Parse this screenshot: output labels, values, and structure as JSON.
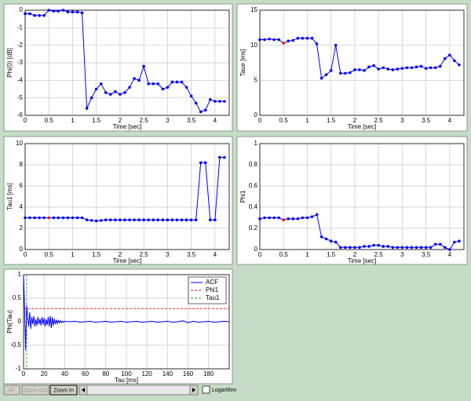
{
  "chart_data": [
    {
      "type": "line",
      "xlabel": "Time [sec]",
      "ylabel": "Phi(0) [dB]",
      "markers": true,
      "grid": true,
      "x": [
        0,
        0.1,
        0.2,
        0.3,
        0.4,
        0.5,
        0.6,
        0.7,
        0.8,
        0.9,
        1,
        1.1,
        1.2,
        1.3,
        1.4,
        1.5,
        1.6,
        1.7,
        1.8,
        1.9,
        2,
        2.1,
        2.2,
        2.3,
        2.4,
        2.5,
        2.6,
        2.7,
        2.8,
        2.9,
        3,
        3.1,
        3.2,
        3.3,
        3.4,
        3.5,
        3.6,
        3.7,
        3.8,
        3.9,
        4,
        4.1,
        4.2
      ],
      "series": [
        {
          "color": "#0000ff",
          "values": [
            -0.2,
            -0.2,
            -0.3,
            -0.3,
            -0.3,
            0,
            -0.05,
            -0.05,
            0,
            -0.1,
            -0.1,
            -0.1,
            -0.15,
            -5.6,
            -5.0,
            -4.5,
            -4.2,
            -4.7,
            -4.8,
            -4.65,
            -4.8,
            -4.7,
            -4.4,
            -3.9,
            -4.0,
            -3.2,
            -4.2,
            -4.2,
            -4.2,
            -4.5,
            -4.4,
            -4.1,
            -4.1,
            -4.1,
            -4.4,
            -4.9,
            -5.3,
            -5.8,
            -5.7,
            -5.1,
            -5.2,
            -5.2,
            -5.2
          ]
        }
      ],
      "xlim": [
        0,
        4.3
      ],
      "xticks": [
        0,
        0.5,
        1,
        1.5,
        2,
        2.5,
        3,
        3.5,
        4
      ],
      "ylim": [
        -6,
        0
      ],
      "yticks": [
        -6,
        -5,
        -4,
        -3,
        -2,
        -1,
        0
      ]
    },
    {
      "type": "line",
      "xlabel": "Time [sec]",
      "ylabel": "Taue [ms]",
      "markers": true,
      "grid": true,
      "highlight": {
        "x": 0.5,
        "color": "#ff0000"
      },
      "x": [
        0,
        0.1,
        0.2,
        0.3,
        0.4,
        0.5,
        0.6,
        0.7,
        0.8,
        0.9,
        1,
        1.1,
        1.2,
        1.3,
        1.4,
        1.5,
        1.6,
        1.7,
        1.8,
        1.9,
        2,
        2.1,
        2.2,
        2.3,
        2.4,
        2.5,
        2.6,
        2.7,
        2.8,
        2.9,
        3,
        3.1,
        3.2,
        3.3,
        3.4,
        3.5,
        3.6,
        3.7,
        3.8,
        3.9,
        4,
        4.1,
        4.2
      ],
      "series": [
        {
          "color": "#0000ff",
          "values": [
            10.8,
            10.8,
            10.9,
            10.8,
            10.8,
            10.3,
            10.6,
            10.7,
            11,
            11,
            11,
            11,
            10.2,
            5.3,
            5.8,
            6.4,
            10,
            6,
            6,
            6.1,
            6.5,
            6.5,
            6.4,
            6.9,
            7.1,
            6.6,
            6.8,
            6.6,
            6.5,
            6.6,
            6.7,
            6.8,
            6.8,
            6.9,
            7,
            6.7,
            6.8,
            6.8,
            7,
            8.1,
            8.6,
            7.8,
            7.2
          ]
        }
      ],
      "xlim": [
        0,
        4.3
      ],
      "xticks": [
        0,
        0.5,
        1,
        1.5,
        2,
        2.5,
        3,
        3.5,
        4
      ],
      "ylim": [
        0,
        15
      ],
      "yticks": [
        0,
        5,
        10,
        15
      ]
    },
    {
      "type": "line",
      "xlabel": "Time [sec]",
      "ylabel": "Tau1 [ms]",
      "markers": true,
      "grid": true,
      "highlight": {
        "x": 0.5,
        "color": "#ff0000"
      },
      "x": [
        0,
        0.1,
        0.2,
        0.3,
        0.4,
        0.5,
        0.6,
        0.7,
        0.8,
        0.9,
        1,
        1.1,
        1.2,
        1.3,
        1.4,
        1.5,
        1.6,
        1.7,
        1.8,
        1.9,
        2,
        2.1,
        2.2,
        2.3,
        2.4,
        2.5,
        2.6,
        2.7,
        2.8,
        2.9,
        3,
        3.1,
        3.2,
        3.3,
        3.4,
        3.5,
        3.6,
        3.7,
        3.8,
        3.9,
        4,
        4.1,
        4.2
      ],
      "series": [
        {
          "color": "#0000ff",
          "values": [
            3,
            3,
            3,
            3,
            3,
            3,
            3,
            3,
            3,
            3,
            3,
            3,
            3,
            2.8,
            2.75,
            2.7,
            2.75,
            2.8,
            2.8,
            2.8,
            2.8,
            2.8,
            2.8,
            2.8,
            2.8,
            2.8,
            2.8,
            2.8,
            2.8,
            2.8,
            2.8,
            2.8,
            2.8,
            2.8,
            2.8,
            2.8,
            2.8,
            8.2,
            8.2,
            2.8,
            2.8,
            8.7,
            8.7
          ]
        }
      ],
      "xlim": [
        0,
        4.3
      ],
      "xticks": [
        0,
        0.5,
        1,
        1.5,
        2,
        2.5,
        3,
        3.5,
        4
      ],
      "ylim": [
        0,
        10
      ],
      "yticks": [
        0,
        2,
        4,
        6,
        8,
        10
      ]
    },
    {
      "type": "line",
      "xlabel": "Time [sec]",
      "ylabel": "Phi1",
      "markers": true,
      "grid": true,
      "highlight": {
        "x": 0.5,
        "color": "#ff0000"
      },
      "x": [
        0,
        0.1,
        0.2,
        0.3,
        0.4,
        0.5,
        0.6,
        0.7,
        0.8,
        0.9,
        1,
        1.1,
        1.2,
        1.3,
        1.4,
        1.5,
        1.6,
        1.7,
        1.8,
        1.9,
        2,
        2.1,
        2.2,
        2.3,
        2.4,
        2.5,
        2.6,
        2.7,
        2.8,
        2.9,
        3,
        3.1,
        3.2,
        3.3,
        3.4,
        3.5,
        3.6,
        3.7,
        3.8,
        3.9,
        4,
        4.1,
        4.2
      ],
      "series": [
        {
          "color": "#0000ff",
          "values": [
            0.29,
            0.3,
            0.3,
            0.3,
            0.3,
            0.28,
            0.29,
            0.29,
            0.29,
            0.3,
            0.3,
            0.31,
            0.33,
            0.12,
            0.1,
            0.08,
            0.07,
            0.02,
            0.02,
            0.02,
            0.02,
            0.02,
            0.03,
            0.03,
            0.04,
            0.04,
            0.03,
            0.03,
            0.02,
            0.02,
            0.02,
            0.02,
            0.02,
            0.02,
            0.02,
            0.02,
            0.02,
            0.05,
            0.05,
            0.02,
            0,
            0.07,
            0.08
          ]
        }
      ],
      "xlim": [
        0,
        4.3
      ],
      "xticks": [
        0,
        0.5,
        1,
        1.5,
        2,
        2.5,
        3,
        3.5,
        4
      ],
      "ylim": [
        0,
        1
      ],
      "yticks": [
        0,
        0.2,
        0.4,
        0.6,
        0.8,
        1
      ]
    },
    {
      "type": "line",
      "xlabel": "Tau [ms]",
      "ylabel": "Phi(Tau)",
      "markers": false,
      "grid": true,
      "legend": "upper right",
      "x": [
        0,
        1,
        2,
        3,
        4,
        5,
        6,
        7,
        8,
        9,
        10,
        11,
        12,
        13,
        14,
        15,
        16,
        17,
        18,
        19,
        20,
        21,
        22,
        23,
        24,
        25,
        26,
        27,
        28,
        29,
        30,
        31,
        32,
        33,
        34,
        35,
        36,
        37,
        38,
        39,
        40,
        45,
        50,
        55,
        60,
        65,
        70,
        75,
        80,
        85,
        90,
        95,
        100,
        105,
        110,
        115,
        120,
        125,
        130,
        135,
        140,
        145,
        150,
        155,
        160,
        165,
        170,
        175,
        180,
        185,
        190,
        195,
        200
      ],
      "series": [
        {
          "name": "ACF",
          "color": "#0000ff",
          "values": [
            1,
            0.3,
            -0.6,
            0.35,
            0.1,
            -0.1,
            0.2,
            -0.15,
            0.1,
            -0.05,
            0.12,
            -0.1,
            0.05,
            -0.08,
            0.1,
            -0.05,
            0.06,
            -0.08,
            0.1,
            -0.06,
            0.08,
            -0.1,
            0.05,
            -0.07,
            0.1,
            -0.1,
            0.12,
            -0.13,
            0.1,
            -0.08,
            0.06,
            -0.05,
            0.04,
            -0.04,
            0.03,
            -0.02,
            0.02,
            -0.02,
            0.01,
            -0.01,
            0.01,
            0,
            0.01,
            -0.01,
            0,
            0.01,
            -0.01,
            0,
            0.01,
            -0.01,
            0,
            0.01,
            -0.01,
            0,
            0.01,
            -0.01,
            0,
            0.01,
            -0.01,
            0,
            0.01,
            -0.01,
            0,
            0.02,
            -0.02,
            0.01,
            -0.01,
            0,
            0.01,
            -0.01,
            0,
            0.01,
            0
          ]
        }
      ],
      "reference_lines": [
        {
          "name": "Phi1",
          "color": "#ff0000",
          "y": 0.28
        },
        {
          "name": "Tau1",
          "color": "#00a000",
          "x": 3
        }
      ],
      "xlim": [
        0,
        200
      ],
      "xticks": [
        0,
        20,
        40,
        60,
        80,
        100,
        120,
        140,
        160,
        180
      ],
      "ylim": [
        -1,
        1
      ],
      "yticks": [
        -1,
        -0.5,
        0,
        0.5,
        1
      ]
    }
  ],
  "controls": {
    "buttons": [
      "AF",
      "Zoom Out",
      "Zoom In"
    ],
    "checkbox": "Logarithm"
  }
}
